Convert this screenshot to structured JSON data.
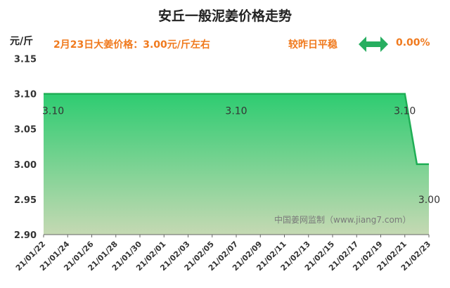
{
  "header": {
    "title": "安丘一般泥姜价格走势",
    "unit": "元/斤",
    "price_text": "2月23日大姜价格：3.00元/斤左右",
    "compare_label": "较昨日平稳",
    "change_value": "0.00%",
    "arrow_icon": "double-arrow-horizontal-icon"
  },
  "colors": {
    "accent_orange": "#f07a1e",
    "accent_green": "#27ae60",
    "line": "#1fae55",
    "fill_top": "#2ecc71",
    "fill_bottom": "#c5d9b3"
  },
  "watermark": "中国姜网监制（www.jiang7.com）",
  "chart_data": {
    "type": "area",
    "title": "安丘一般泥姜价格走势",
    "ylabel": "元/斤",
    "xlabel": "",
    "ylim": [
      2.9,
      3.15
    ],
    "yticks": [
      2.9,
      2.95,
      3.0,
      3.05,
      3.1,
      3.15
    ],
    "grid": false,
    "x_ticks": [
      "21/01/22",
      "21/01/24",
      "21/01/26",
      "21/01/28",
      "21/01/30",
      "21/02/01",
      "21/02/03",
      "21/02/05",
      "21/02/07",
      "21/02/09",
      "21/02/11",
      "21/02/13",
      "21/02/15",
      "21/02/17",
      "21/02/19",
      "21/02/21",
      "21/02/23"
    ],
    "x": [
      "21/01/22",
      "21/01/23",
      "21/01/24",
      "21/01/25",
      "21/01/26",
      "21/01/27",
      "21/01/28",
      "21/01/29",
      "21/01/30",
      "21/01/31",
      "21/02/01",
      "21/02/02",
      "21/02/03",
      "21/02/04",
      "21/02/05",
      "21/02/06",
      "21/02/07",
      "21/02/08",
      "21/02/09",
      "21/02/10",
      "21/02/11",
      "21/02/12",
      "21/02/13",
      "21/02/14",
      "21/02/15",
      "21/02/16",
      "21/02/17",
      "21/02/18",
      "21/02/19",
      "21/02/20",
      "21/02/21",
      "21/02/22",
      "21/02/23"
    ],
    "series": [
      {
        "values": [
          3.1,
          3.1,
          3.1,
          3.1,
          3.1,
          3.1,
          3.1,
          3.1,
          3.1,
          3.1,
          3.1,
          3.1,
          3.1,
          3.1,
          3.1,
          3.1,
          3.1,
          3.1,
          3.1,
          3.1,
          3.1,
          3.1,
          3.1,
          3.1,
          3.1,
          3.1,
          3.1,
          3.1,
          3.1,
          3.1,
          3.1,
          3.0,
          3.0
        ]
      }
    ],
    "data_labels": [
      {
        "x": "21/01/22",
        "text": "3.10"
      },
      {
        "x": "21/02/07",
        "text": "3.10"
      },
      {
        "x": "21/02/21",
        "text": "3.10"
      },
      {
        "x": "21/02/23",
        "text": "3.00"
      }
    ]
  }
}
